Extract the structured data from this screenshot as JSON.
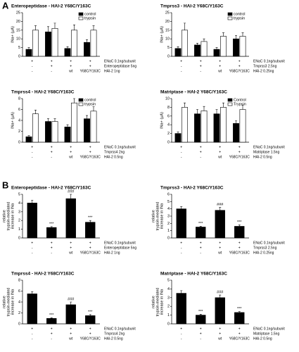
{
  "panel_labels": [
    "A",
    "B"
  ],
  "chart_data": [
    {
      "type": "bar",
      "title": "Enteropeptidase - HAI-2 Y68C/Y163C",
      "ylabel": [
        "INa+ (µA)"
      ],
      "ylim": [
        0,
        25
      ],
      "yticks": [
        0,
        5,
        10,
        15,
        20,
        25
      ],
      "series": [
        {
          "name": "control",
          "color": "#000000",
          "values": [
            4,
            14,
            4.5,
            8
          ],
          "errors": [
            1,
            3,
            1,
            1.5
          ]
        },
        {
          "name": "trypsin",
          "color": "#ffffff",
          "values": [
            15,
            16,
            15,
            15
          ],
          "errors": [
            2.5,
            3,
            3,
            2.5
          ]
        }
      ],
      "conditions": [
        {
          "label": "ENaC 0.1ng/subunit",
          "marks": [
            "+",
            "+",
            "+",
            "+"
          ]
        },
        {
          "label": "Enteropeptidase 5ng",
          "marks": [
            "-",
            "+",
            "+",
            "+"
          ]
        },
        {
          "label": "HAI-2 1ng",
          "marks": [
            "-",
            "-",
            "wt",
            "Y68C/Y163C"
          ]
        }
      ]
    },
    {
      "type": "bar",
      "title": "Tmprss3 - HAI-2 Y68C/Y163C",
      "ylabel": [
        "INa+ (µA)"
      ],
      "ylim": [
        0,
        25
      ],
      "yticks": [
        0,
        5,
        10,
        15,
        20,
        25
      ],
      "series": [
        {
          "name": "control",
          "color": "#000000",
          "values": [
            4.5,
            6.5,
            4,
            10
          ],
          "errors": [
            1,
            1,
            1,
            2
          ]
        },
        {
          "name": "trypsin",
          "color": "#ffffff",
          "values": [
            15,
            8.5,
            11.5,
            11.5
          ],
          "errors": [
            4,
            1.5,
            2,
            2
          ]
        }
      ],
      "conditions": [
        {
          "label": "ENaC 0.1ng/subunit",
          "marks": [
            "+",
            "+",
            "+",
            "+"
          ]
        },
        {
          "label": "Tmprss3 2.5ng",
          "marks": [
            "-",
            "+",
            "+",
            "+"
          ]
        },
        {
          "label": "HAI-2 0.25ng",
          "marks": [
            "-",
            "-",
            "wt",
            "Y68C/Y163C"
          ]
        }
      ]
    },
    {
      "type": "bar",
      "title": "Tmprss4 - HAI-2 Y68C/Y163C",
      "ylabel": [
        "INa+ (µA)"
      ],
      "ylim": [
        0,
        8
      ],
      "yticks": [
        0,
        2,
        4,
        6,
        8
      ],
      "series": [
        {
          "name": "control",
          "color": "#000000",
          "values": [
            1,
            3.8,
            2.8,
            4.3
          ],
          "errors": [
            0.2,
            0.5,
            0.4,
            0.6
          ]
        },
        {
          "name": "trypsin",
          "color": "#ffffff",
          "values": [
            5.2,
            3.8,
            7.2,
            5.7
          ],
          "errors": [
            0.7,
            0.5,
            0.8,
            0.8
          ]
        }
      ],
      "conditions": [
        {
          "label": "ENaC 0.1ng/subunit",
          "marks": [
            "+",
            "+",
            "+",
            "+"
          ]
        },
        {
          "label": "Tmprss4 2ng",
          "marks": [
            "-",
            "+",
            "+",
            "+"
          ]
        },
        {
          "label": "HAI-2 0.5ng",
          "marks": [
            "-",
            "-",
            "wt",
            "Y68C/Y163C"
          ]
        }
      ]
    },
    {
      "type": "bar",
      "title": "Matriptase - HAI-2 Y68C/Y163C",
      "ylabel": [
        "INa+ (µA)"
      ],
      "ylim": [
        0,
        10
      ],
      "yticks": [
        0,
        2,
        4,
        6,
        8,
        10
      ],
      "series": [
        {
          "name": "Control",
          "color": "#000000",
          "values": [
            2,
            6.5,
            6.5,
            4.3
          ],
          "errors": [
            0.4,
            1,
            1,
            0.6
          ]
        },
        {
          "name": "Trypsin",
          "color": "#ffffff",
          "values": [
            8,
            7.2,
            8,
            7.5
          ],
          "errors": [
            1,
            1,
            1,
            1
          ]
        }
      ],
      "conditions": [
        {
          "label": "ENaC 0.1ng/subunit",
          "marks": [
            "+",
            "+",
            "+",
            "+"
          ]
        },
        {
          "label": "Matriptase 1.5ng",
          "marks": [
            "-",
            "+",
            "+",
            "+"
          ]
        },
        {
          "label": "HAI-2 0.5ng",
          "marks": [
            "-",
            "-",
            "wt",
            "Y68C/Y163C"
          ]
        }
      ]
    },
    {
      "type": "bar",
      "title": "Enteropeptidase - HAI-2 Y68C/Y163C",
      "ylabel": [
        "relative",
        "trypsin-mediated",
        "increase in INa"
      ],
      "ylim": [
        0,
        5
      ],
      "yticks": [
        0,
        1,
        2,
        3,
        4,
        5
      ],
      "series": [
        {
          "color": "#000000",
          "values": [
            4,
            1.2,
            4.5,
            1.8
          ],
          "errors": [
            0.3,
            0.1,
            0.5,
            0.2
          ]
        }
      ],
      "annotations": [
        null,
        "***",
        "###",
        "***"
      ],
      "conditions": [
        {
          "label": "ENaC 0.1ng/subunit",
          "marks": [
            "+",
            "+",
            "+",
            "+"
          ]
        },
        {
          "label": "Enteropeptidase 5ng",
          "marks": [
            "-",
            "+",
            "+",
            "+"
          ]
        },
        {
          "label": "HAI-2 1ng",
          "marks": [
            "-",
            "-",
            "wt",
            "Y68C/Y163C"
          ]
        }
      ]
    },
    {
      "type": "bar",
      "title": "Tmprss3 - HAI-2 Y68C/Y163C",
      "ylabel": [
        "relative",
        "trypsin-mediated",
        "increase in INa"
      ],
      "ylim": [
        0,
        6
      ],
      "yticks": [
        0,
        1,
        2,
        3,
        4,
        5,
        6
      ],
      "series": [
        {
          "color": "#000000",
          "values": [
            4,
            1.5,
            3.8,
            1.6
          ],
          "errors": [
            0.3,
            0.1,
            0.4,
            0.2
          ]
        }
      ],
      "annotations": [
        null,
        "***",
        "###",
        "***"
      ],
      "conditions": [
        {
          "label": "ENaC 0.1ng/subunit",
          "marks": [
            "+",
            "+",
            "+",
            "+"
          ]
        },
        {
          "label": "Tmprss3 2.5ng",
          "marks": [
            "-",
            "+",
            "+",
            "+"
          ]
        },
        {
          "label": "HAI-2 0.25ng",
          "marks": [
            "-",
            "-",
            "wt",
            "Y68C/Y163C"
          ]
        }
      ]
    },
    {
      "type": "bar",
      "title": "Tmprss4 - HAI-2 Y68C/Y163C",
      "ylabel": [
        "relative",
        "trypsin-mediated",
        "increase in INa"
      ],
      "ylim": [
        0,
        8
      ],
      "yticks": [
        0,
        2,
        4,
        6,
        8
      ],
      "series": [
        {
          "color": "#000000",
          "values": [
            5.5,
            1,
            3.5,
            1.5
          ],
          "errors": [
            0.4,
            0.1,
            0.5,
            0.2
          ]
        }
      ],
      "annotations": [
        null,
        "***",
        "###",
        "***"
      ],
      "conditions": [
        {
          "label": "ENaC 0.1ng/subunit",
          "marks": [
            "+",
            "+",
            "+",
            "+"
          ]
        },
        {
          "label": "Tmprss4 2ng",
          "marks": [
            "-",
            "+",
            "+",
            "+"
          ]
        },
        {
          "label": "HAI-2 0.5ng",
          "marks": [
            "-",
            "-",
            "wt",
            "Y68C/Y163C"
          ]
        }
      ]
    },
    {
      "type": "bar",
      "title": "Matriptase - HAI-2 Y68C/Y163C",
      "ylabel": [
        "relative",
        "trypsin-mediated",
        "increase in INa"
      ],
      "ylim": [
        0,
        5
      ],
      "yticks": [
        0,
        1,
        2,
        3,
        4,
        5
      ],
      "series": [
        {
          "color": "#000000",
          "values": [
            3.5,
            1,
            3,
            1.3
          ],
          "errors": [
            0.3,
            0.1,
            0.3,
            0.1
          ]
        }
      ],
      "annotations": [
        null,
        "***",
        "###",
        "***"
      ],
      "conditions": [
        {
          "label": "ENaC 0.1ng/subunit",
          "marks": [
            "+",
            "+",
            "+",
            "+"
          ]
        },
        {
          "label": "Matriptase 1.5ng",
          "marks": [
            "-",
            "+",
            "+",
            "+"
          ]
        },
        {
          "label": "HAI-2 0.5ng",
          "marks": [
            "-",
            "-",
            "wt",
            "Y68C/Y163C"
          ]
        }
      ]
    }
  ]
}
